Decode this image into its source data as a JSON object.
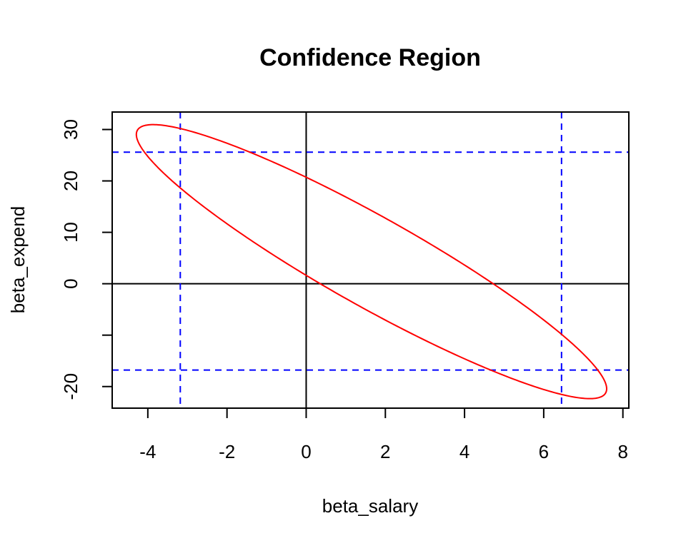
{
  "chart_data": {
    "type": "line",
    "title": "Confidence Region",
    "xlabel": "beta_salary",
    "ylabel": "beta_expend",
    "xlim": [
      -4.9,
      8.15
    ],
    "ylim": [
      -24.2,
      33.4
    ],
    "x_ticks": [
      -4,
      -2,
      0,
      2,
      4,
      6,
      8
    ],
    "x_tick_labels": [
      "-4",
      "-2",
      "0",
      "2",
      "4",
      "6",
      "8"
    ],
    "y_ticks": [
      -20,
      -10,
      0,
      10,
      20,
      30
    ],
    "y_tick_labels": [
      "-20",
      "",
      "0",
      "10",
      "20",
      "30"
    ],
    "grid": false,
    "ellipse": {
      "center": [
        1.65,
        4.3
      ],
      "extent_x": [
        -4.28,
        7.6
      ],
      "extent_y": [
        -22.3,
        31.0
      ],
      "correlation": -0.928,
      "color": "#ff0000"
    },
    "reference_lines": {
      "horizontal": [
        {
          "y": 0,
          "color": "#000000",
          "style": "solid"
        }
      ],
      "vertical": [
        {
          "x": 0,
          "color": "#000000",
          "style": "solid"
        }
      ]
    },
    "interval_lines": {
      "color": "#0000ff",
      "style": "dashed",
      "vertical": [
        -3.18,
        6.45
      ],
      "horizontal": [
        -16.8,
        25.6
      ]
    }
  }
}
